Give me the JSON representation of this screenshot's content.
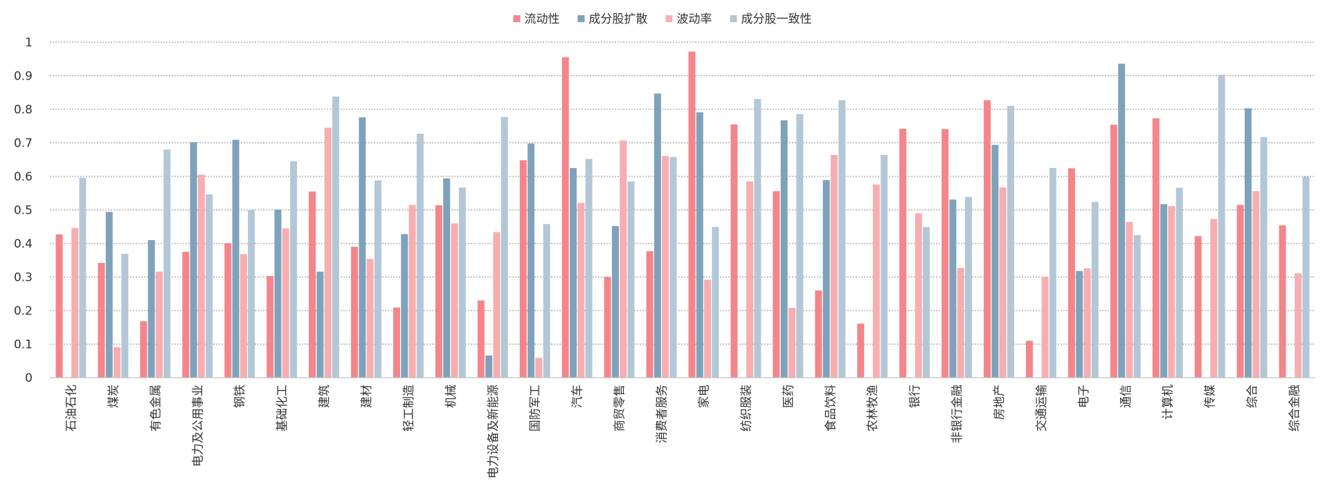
{
  "chart_data": {
    "type": "bar",
    "title": "",
    "xlabel": "",
    "ylabel": "",
    "ylim": [
      0,
      1
    ],
    "yticks": [
      "0",
      "0.1",
      "0.2",
      "0.3",
      "0.4",
      "0.5",
      "0.6",
      "0.7",
      "0.8",
      "0.9",
      "1"
    ],
    "grid": true,
    "legend_position": "top",
    "categories": [
      "石油石化",
      "煤炭",
      "有色金属",
      "电力及公用事业",
      "钢铁",
      "基础化工",
      "建筑",
      "建材",
      "轻工制造",
      "机械",
      "电力设备及新能源",
      "国防军工",
      "汽车",
      "商贸零售",
      "消费者服务",
      "家电",
      "纺织服装",
      "医药",
      "食品饮料",
      "农林牧渔",
      "银行",
      "非银行金融",
      "房地产",
      "交通运输",
      "电子",
      "通信",
      "计算机",
      "传媒",
      "综合",
      "综合金融"
    ],
    "series": [
      {
        "name": "流动性",
        "color": "#f4858a",
        "values": [
          0.427,
          0.342,
          0.168,
          0.375,
          0.401,
          0.303,
          0.555,
          0.39,
          0.209,
          0.514,
          0.23,
          0.648,
          0.955,
          0.3,
          0.377,
          0.972,
          0.755,
          0.556,
          0.26,
          0.161,
          0.742,
          0.741,
          0.827,
          0.11,
          0.624,
          0.754,
          0.773,
          0.422,
          0.515,
          0.454
        ]
      },
      {
        "name": "成分股扩散",
        "color": "#7fa2bb",
        "values": [
          null,
          0.494,
          0.41,
          0.702,
          0.709,
          0.501,
          0.316,
          0.776,
          0.428,
          0.594,
          0.066,
          0.698,
          0.625,
          0.452,
          0.847,
          0.791,
          null,
          0.767,
          0.589,
          null,
          null,
          0.531,
          0.694,
          null,
          0.318,
          0.936,
          0.517,
          null,
          0.803,
          null
        ]
      },
      {
        "name": "波动率",
        "color": "#f7aeb0",
        "values": [
          0.446,
          0.091,
          0.316,
          0.605,
          0.368,
          0.445,
          0.745,
          0.354,
          0.515,
          0.46,
          0.434,
          0.059,
          0.521,
          0.707,
          0.661,
          0.292,
          0.585,
          0.208,
          0.664,
          0.576,
          0.49,
          0.327,
          0.567,
          0.301,
          0.326,
          0.464,
          0.511,
          0.473,
          0.556,
          0.311
        ]
      },
      {
        "name": "成分股一致性",
        "color": "#b3c7d7",
        "values": [
          0.596,
          0.369,
          0.68,
          0.546,
          0.499,
          0.645,
          0.838,
          0.588,
          0.727,
          0.567,
          0.777,
          0.458,
          0.652,
          0.585,
          0.658,
          0.449,
          0.831,
          0.786,
          0.827,
          0.664,
          0.449,
          0.539,
          0.81,
          0.625,
          0.524,
          0.425,
          0.566,
          0.903,
          0.717,
          0.599
        ]
      }
    ]
  }
}
